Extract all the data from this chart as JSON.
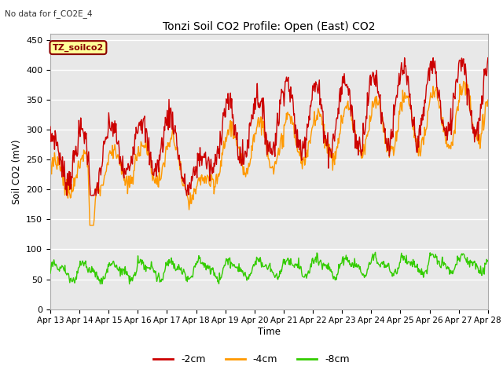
{
  "title": "Tonzi Soil CO2 Profile: Open (East) CO2",
  "no_data_text": "No data for f_CO2E_4",
  "ylabel": "Soil CO2 (mV)",
  "xlabel": "Time",
  "legend_label": "TZ_soilco2",
  "series_labels": [
    "-2cm",
    "-4cm",
    "-8cm"
  ],
  "series_colors": [
    "#cc0000",
    "#ff9900",
    "#33cc00"
  ],
  "ylim": [
    0,
    460
  ],
  "yticks": [
    0,
    50,
    100,
    150,
    200,
    250,
    300,
    350,
    400,
    450
  ],
  "xtick_labels": [
    "Apr 13",
    "Apr 14",
    "Apr 15",
    "Apr 16",
    "Apr 17",
    "Apr 18",
    "Apr 19",
    "Apr 20",
    "Apr 21",
    "Apr 22",
    "Apr 23",
    "Apr 24",
    "Apr 25",
    "Apr 26",
    "Apr 27",
    "Apr 28"
  ],
  "bg_color": "#e8e8e8",
  "grid_color": "#ffffff",
  "legend_box_facecolor": "#ffff99",
  "legend_box_edgecolor": "#8b0000",
  "figsize": [
    6.4,
    4.8
  ],
  "dpi": 100
}
